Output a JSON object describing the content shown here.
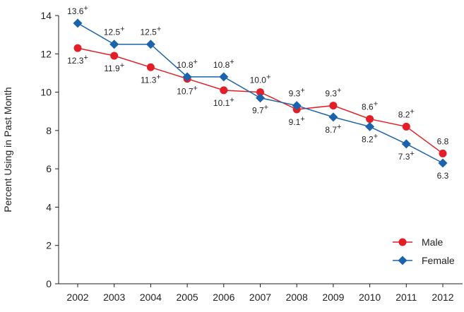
{
  "chart_data": {
    "type": "line",
    "title": "",
    "xlabel": "",
    "ylabel": "Percent Using in Past Month",
    "categories": [
      "2002",
      "2003",
      "2004",
      "2005",
      "2006",
      "2007",
      "2008",
      "2009",
      "2010",
      "2011",
      "2012"
    ],
    "ylim": [
      0,
      14
    ],
    "yticks": [
      0,
      2,
      4,
      6,
      8,
      10,
      12,
      14
    ],
    "grid": false,
    "legend_placement": "bottom-right",
    "significance_marker": "+",
    "series": [
      {
        "name": "Male",
        "color": "#e31e26",
        "marker": "circle",
        "values": [
          12.3,
          11.9,
          11.3,
          10.7,
          10.1,
          10.0,
          9.1,
          9.3,
          8.6,
          8.2,
          6.8
        ],
        "labels": [
          "12.3",
          "11.9",
          "11.3",
          "10.7",
          "10.1",
          "10.0",
          "9.1",
          "9.3",
          "8.6",
          "8.2",
          "6.8"
        ],
        "significant": [
          true,
          true,
          true,
          true,
          true,
          true,
          true,
          true,
          true,
          true,
          false
        ],
        "label_side": [
          "below",
          "below",
          "below",
          "below",
          "below",
          "above",
          "below",
          "above",
          "above",
          "above",
          "above"
        ]
      },
      {
        "name": "Female",
        "color": "#1b64ad",
        "marker": "diamond",
        "values": [
          13.6,
          12.5,
          12.5,
          10.8,
          10.8,
          9.7,
          9.3,
          8.7,
          8.2,
          7.3,
          6.3
        ],
        "labels": [
          "13.6",
          "12.5",
          "12.5",
          "10.8",
          "10.8",
          "9.7",
          "9.3",
          "8.7",
          "8.2",
          "7.3",
          "6.3"
        ],
        "significant": [
          true,
          true,
          true,
          true,
          true,
          true,
          true,
          true,
          true,
          true,
          false
        ],
        "label_side": [
          "above",
          "above",
          "above",
          "above",
          "above",
          "below",
          "above",
          "below",
          "below",
          "below",
          "below"
        ]
      }
    ]
  }
}
